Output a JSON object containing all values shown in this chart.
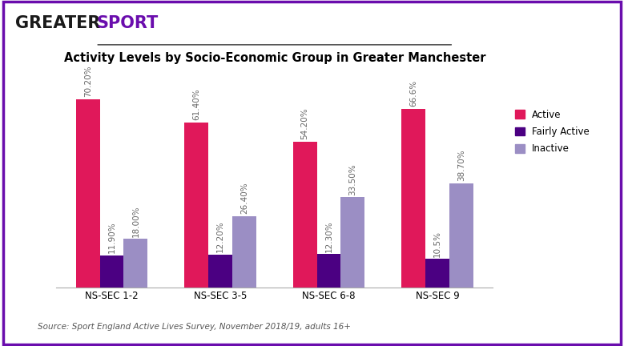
{
  "title": "Activity Levels by Socio-Economic Group in Greater Manchester",
  "categories": [
    "NS-SEC 1-2",
    "NS-SEC 3-5",
    "NS-SEC 6-8",
    "NS-SEC 9"
  ],
  "series": {
    "Active": [
      70.2,
      61.4,
      54.2,
      66.6
    ],
    "Fairly Active": [
      11.9,
      12.2,
      12.3,
      10.5
    ],
    "Inactive": [
      18.0,
      26.4,
      33.5,
      38.7
    ]
  },
  "labels": {
    "Active": [
      "70.20%",
      "61.40%",
      "54.20%",
      "66.6%"
    ],
    "Fairly Active": [
      "11.90%",
      "12.20%",
      "12.30%",
      "10.5%"
    ],
    "Inactive": [
      "18.00%",
      "26.40%",
      "33.50%",
      "38.70%"
    ]
  },
  "colors": {
    "Active": "#E0185A",
    "Fairly Active": "#4B0082",
    "Inactive": "#9B8EC4"
  },
  "ylim": [
    0,
    80
  ],
  "bar_width": 0.22,
  "source_text": "Source: Sport England Active Lives Survey, November 2018/19, adults 16+",
  "border_color": "#6A0DAD",
  "greater_color": "#1a1a1a",
  "sport_color": "#6A0DAD",
  "title_fontsize": 10.5,
  "tick_fontsize": 8.5,
  "label_fontsize": 7.5,
  "legend_fontsize": 8.5,
  "source_fontsize": 7.5,
  "logo_fontsize": 15,
  "figsize": [
    7.79,
    4.32
  ],
  "dpi": 100
}
